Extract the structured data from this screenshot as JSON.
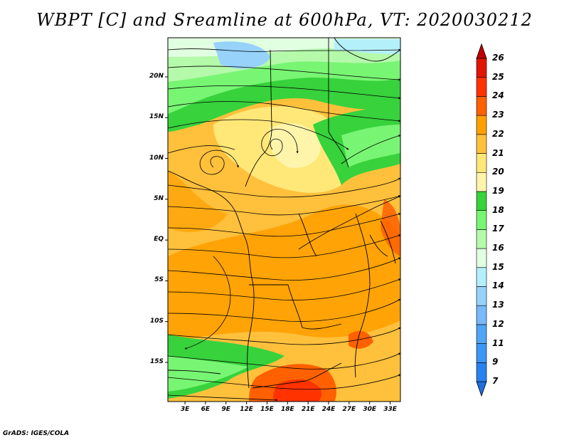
{
  "title": "WBPT [C] and Sreamline at 600hPa, VT: 2020030212",
  "footer": "GrADS: IGES/COLA",
  "map": {
    "lat_labels": [
      "20N",
      "15N",
      "10N",
      "5N",
      "EQ",
      "5S",
      "10S",
      "15S"
    ],
    "lat_values": [
      20,
      15,
      10,
      5,
      0,
      -5,
      -10,
      -15
    ],
    "lon_labels": [
      "3E",
      "6E",
      "9E",
      "12E",
      "15E",
      "18E",
      "21E",
      "24E",
      "27E",
      "30E",
      "33E"
    ],
    "lon_values": [
      3,
      6,
      9,
      12,
      15,
      18,
      21,
      24,
      27,
      30,
      33
    ],
    "lon_range": [
      0.5,
      34.5
    ],
    "lat_range": [
      -19.8,
      24.8
    ]
  },
  "colorbar": {
    "labels": [
      "7",
      "9",
      "11",
      "12",
      "13",
      "14",
      "15",
      "16",
      "17",
      "18",
      "19",
      "20",
      "21",
      "22",
      "23",
      "24",
      "25",
      "26"
    ],
    "colors": [
      "#1e6fdc",
      "#2882f0",
      "#3c96f5",
      "#50a5f5",
      "#78b9fa",
      "#96d2fa",
      "#b4f0fa",
      "#e1ffe1",
      "#b4faaa",
      "#78f573",
      "#37d23c",
      "#fff5aa",
      "#ffe878",
      "#ffc03c",
      "#ffa000",
      "#ff6000",
      "#ff3200",
      "#e11400",
      "#c00000"
    ]
  }
}
